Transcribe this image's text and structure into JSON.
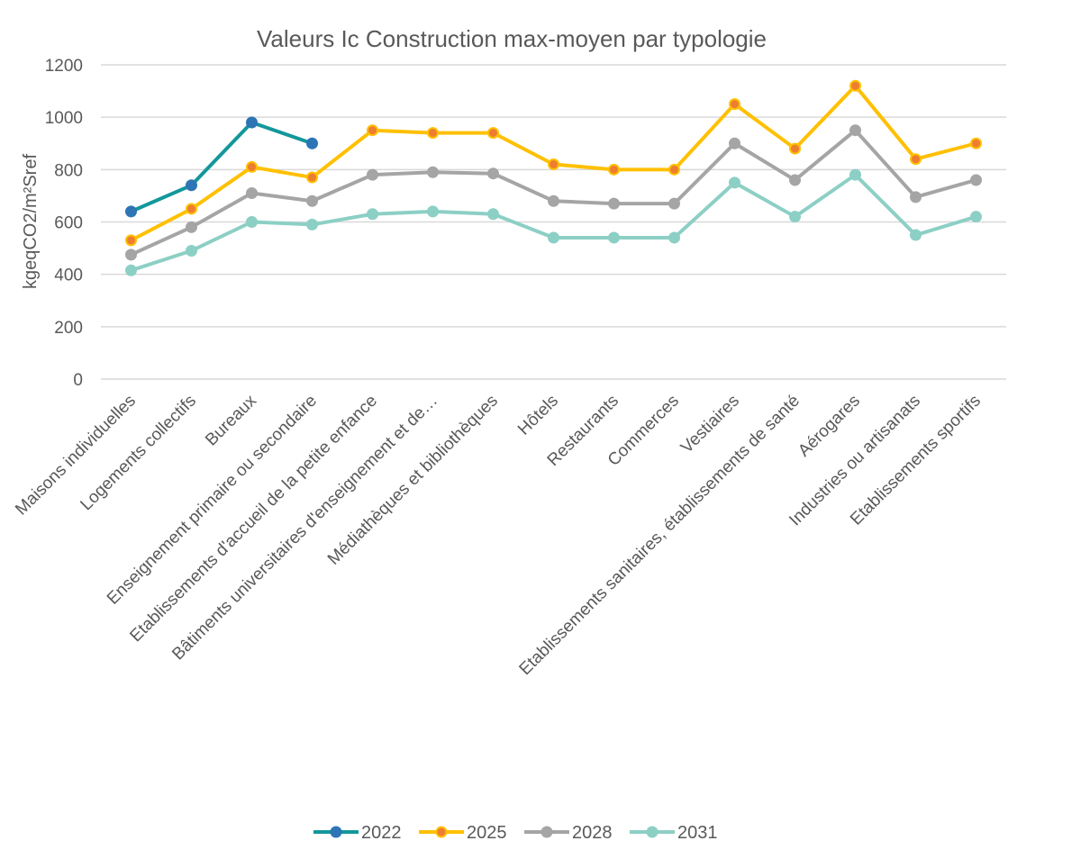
{
  "chart_data": {
    "type": "line",
    "title": "Valeurs Ic Construction max-moyen par typologie",
    "xlabel": "",
    "ylabel": "kgeqCO2/m²Sref",
    "ylim": [
      0,
      1200
    ],
    "yticks": [
      0,
      200,
      400,
      600,
      800,
      1000,
      1200
    ],
    "grid": true,
    "legend_position": "bottom",
    "categories": [
      "Maisons individuelles",
      "Logements collectifs",
      "Bureaux",
      "Enseignement primaire ou secondaire",
      "Etablissements d'accueil de la petite enfance",
      "Bâtiments universitaires d'enseignement et de…",
      "Médiathèques et bibliothèques",
      "Hôtels",
      "Restaurants",
      "Commerces",
      "Vestiaires",
      "Etablissements sanitaires, établissements de santé",
      "Aérogares",
      "Industries ou artisanats",
      "Etablissements sportifs"
    ],
    "series": [
      {
        "name": "2022",
        "color": "#13979b",
        "marker_color": "#2e75b6",
        "marker_edge": "#2e75b6",
        "values": [
          640,
          740,
          980,
          900,
          null,
          null,
          null,
          null,
          null,
          null,
          null,
          null,
          null,
          null,
          null
        ]
      },
      {
        "name": "2025",
        "color": "#ffc000",
        "marker_color": "#ed7d31",
        "marker_edge": "#ffc000",
        "values": [
          530,
          650,
          810,
          770,
          950,
          940,
          940,
          820,
          800,
          800,
          1050,
          880,
          1120,
          840,
          900
        ]
      },
      {
        "name": "2028",
        "color": "#a5a5a5",
        "marker_color": "#a5a5a5",
        "marker_edge": "#a5a5a5",
        "values": [
          475,
          580,
          710,
          680,
          780,
          790,
          785,
          680,
          670,
          670,
          900,
          760,
          950,
          695,
          760
        ]
      },
      {
        "name": "2031",
        "color": "#8ccfc5",
        "marker_color": "#8ccfc5",
        "marker_edge": "#8ccfc5",
        "values": [
          415,
          490,
          600,
          590,
          630,
          640,
          630,
          540,
          540,
          540,
          750,
          620,
          780,
          550,
          620
        ]
      }
    ]
  }
}
